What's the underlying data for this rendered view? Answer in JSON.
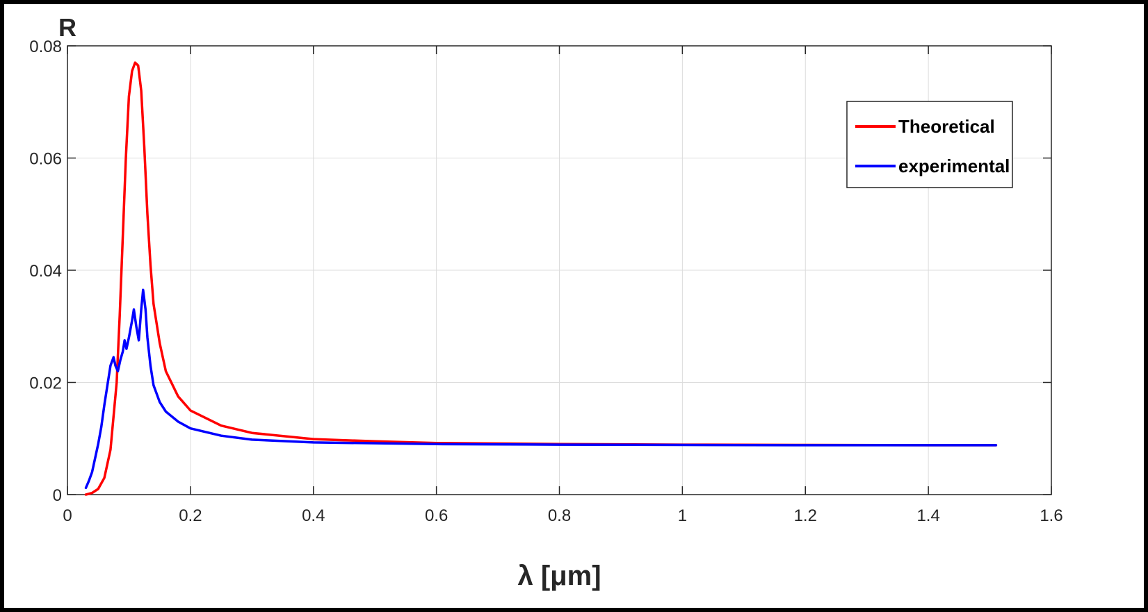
{
  "chart_data": {
    "type": "line",
    "xlabel": "λ [μm]",
    "ylabel": "R",
    "xlim": [
      0,
      1.6
    ],
    "ylim": [
      0,
      0.08
    ],
    "x_ticks": [
      "0",
      "0.2",
      "0.4",
      "0.6",
      "0.8",
      "1",
      "1.2",
      "1.4",
      "1.6"
    ],
    "y_ticks": [
      "0",
      "0.02",
      "0.04",
      "0.06",
      "0.08"
    ],
    "grid": true,
    "legend_position": "top-right",
    "series": [
      {
        "name": "Theoretical",
        "color": "#ff0000",
        "points": [
          [
            0.03,
            0.0
          ],
          [
            0.04,
            0.0003
          ],
          [
            0.05,
            0.001
          ],
          [
            0.06,
            0.003
          ],
          [
            0.07,
            0.008
          ],
          [
            0.08,
            0.02
          ],
          [
            0.085,
            0.032
          ],
          [
            0.09,
            0.046
          ],
          [
            0.095,
            0.06
          ],
          [
            0.1,
            0.071
          ],
          [
            0.105,
            0.0755
          ],
          [
            0.11,
            0.077
          ],
          [
            0.115,
            0.0765
          ],
          [
            0.12,
            0.072
          ],
          [
            0.125,
            0.062
          ],
          [
            0.13,
            0.05
          ],
          [
            0.135,
            0.041
          ],
          [
            0.14,
            0.034
          ],
          [
            0.15,
            0.027
          ],
          [
            0.16,
            0.022
          ],
          [
            0.18,
            0.0175
          ],
          [
            0.2,
            0.015
          ],
          [
            0.25,
            0.0123
          ],
          [
            0.3,
            0.011
          ],
          [
            0.4,
            0.0099
          ],
          [
            0.5,
            0.0095
          ],
          [
            0.6,
            0.0092
          ],
          [
            0.8,
            0.009
          ],
          [
            1.0,
            0.0089
          ],
          [
            1.2,
            0.00885
          ],
          [
            1.4,
            0.0088
          ],
          [
            1.51,
            0.0088
          ]
        ]
      },
      {
        "name": "experimental",
        "color": "#0000ff",
        "points": [
          [
            0.03,
            0.0012
          ],
          [
            0.035,
            0.0025
          ],
          [
            0.04,
            0.004
          ],
          [
            0.045,
            0.0065
          ],
          [
            0.05,
            0.009
          ],
          [
            0.055,
            0.012
          ],
          [
            0.06,
            0.016
          ],
          [
            0.065,
            0.0195
          ],
          [
            0.07,
            0.023
          ],
          [
            0.075,
            0.0245
          ],
          [
            0.078,
            0.023
          ],
          [
            0.082,
            0.022
          ],
          [
            0.086,
            0.024
          ],
          [
            0.09,
            0.0255
          ],
          [
            0.093,
            0.0275
          ],
          [
            0.096,
            0.026
          ],
          [
            0.1,
            0.028
          ],
          [
            0.105,
            0.031
          ],
          [
            0.108,
            0.033
          ],
          [
            0.112,
            0.03
          ],
          [
            0.116,
            0.0275
          ],
          [
            0.12,
            0.033
          ],
          [
            0.123,
            0.0365
          ],
          [
            0.127,
            0.033
          ],
          [
            0.13,
            0.028
          ],
          [
            0.135,
            0.023
          ],
          [
            0.14,
            0.0195
          ],
          [
            0.15,
            0.0165
          ],
          [
            0.16,
            0.0148
          ],
          [
            0.18,
            0.013
          ],
          [
            0.2,
            0.0118
          ],
          [
            0.25,
            0.0105
          ],
          [
            0.3,
            0.0098
          ],
          [
            0.4,
            0.0093
          ],
          [
            0.6,
            0.009
          ],
          [
            0.8,
            0.0089
          ],
          [
            1.0,
            0.00885
          ],
          [
            1.2,
            0.0088
          ],
          [
            1.4,
            0.0088
          ],
          [
            1.51,
            0.0088
          ]
        ]
      }
    ]
  }
}
